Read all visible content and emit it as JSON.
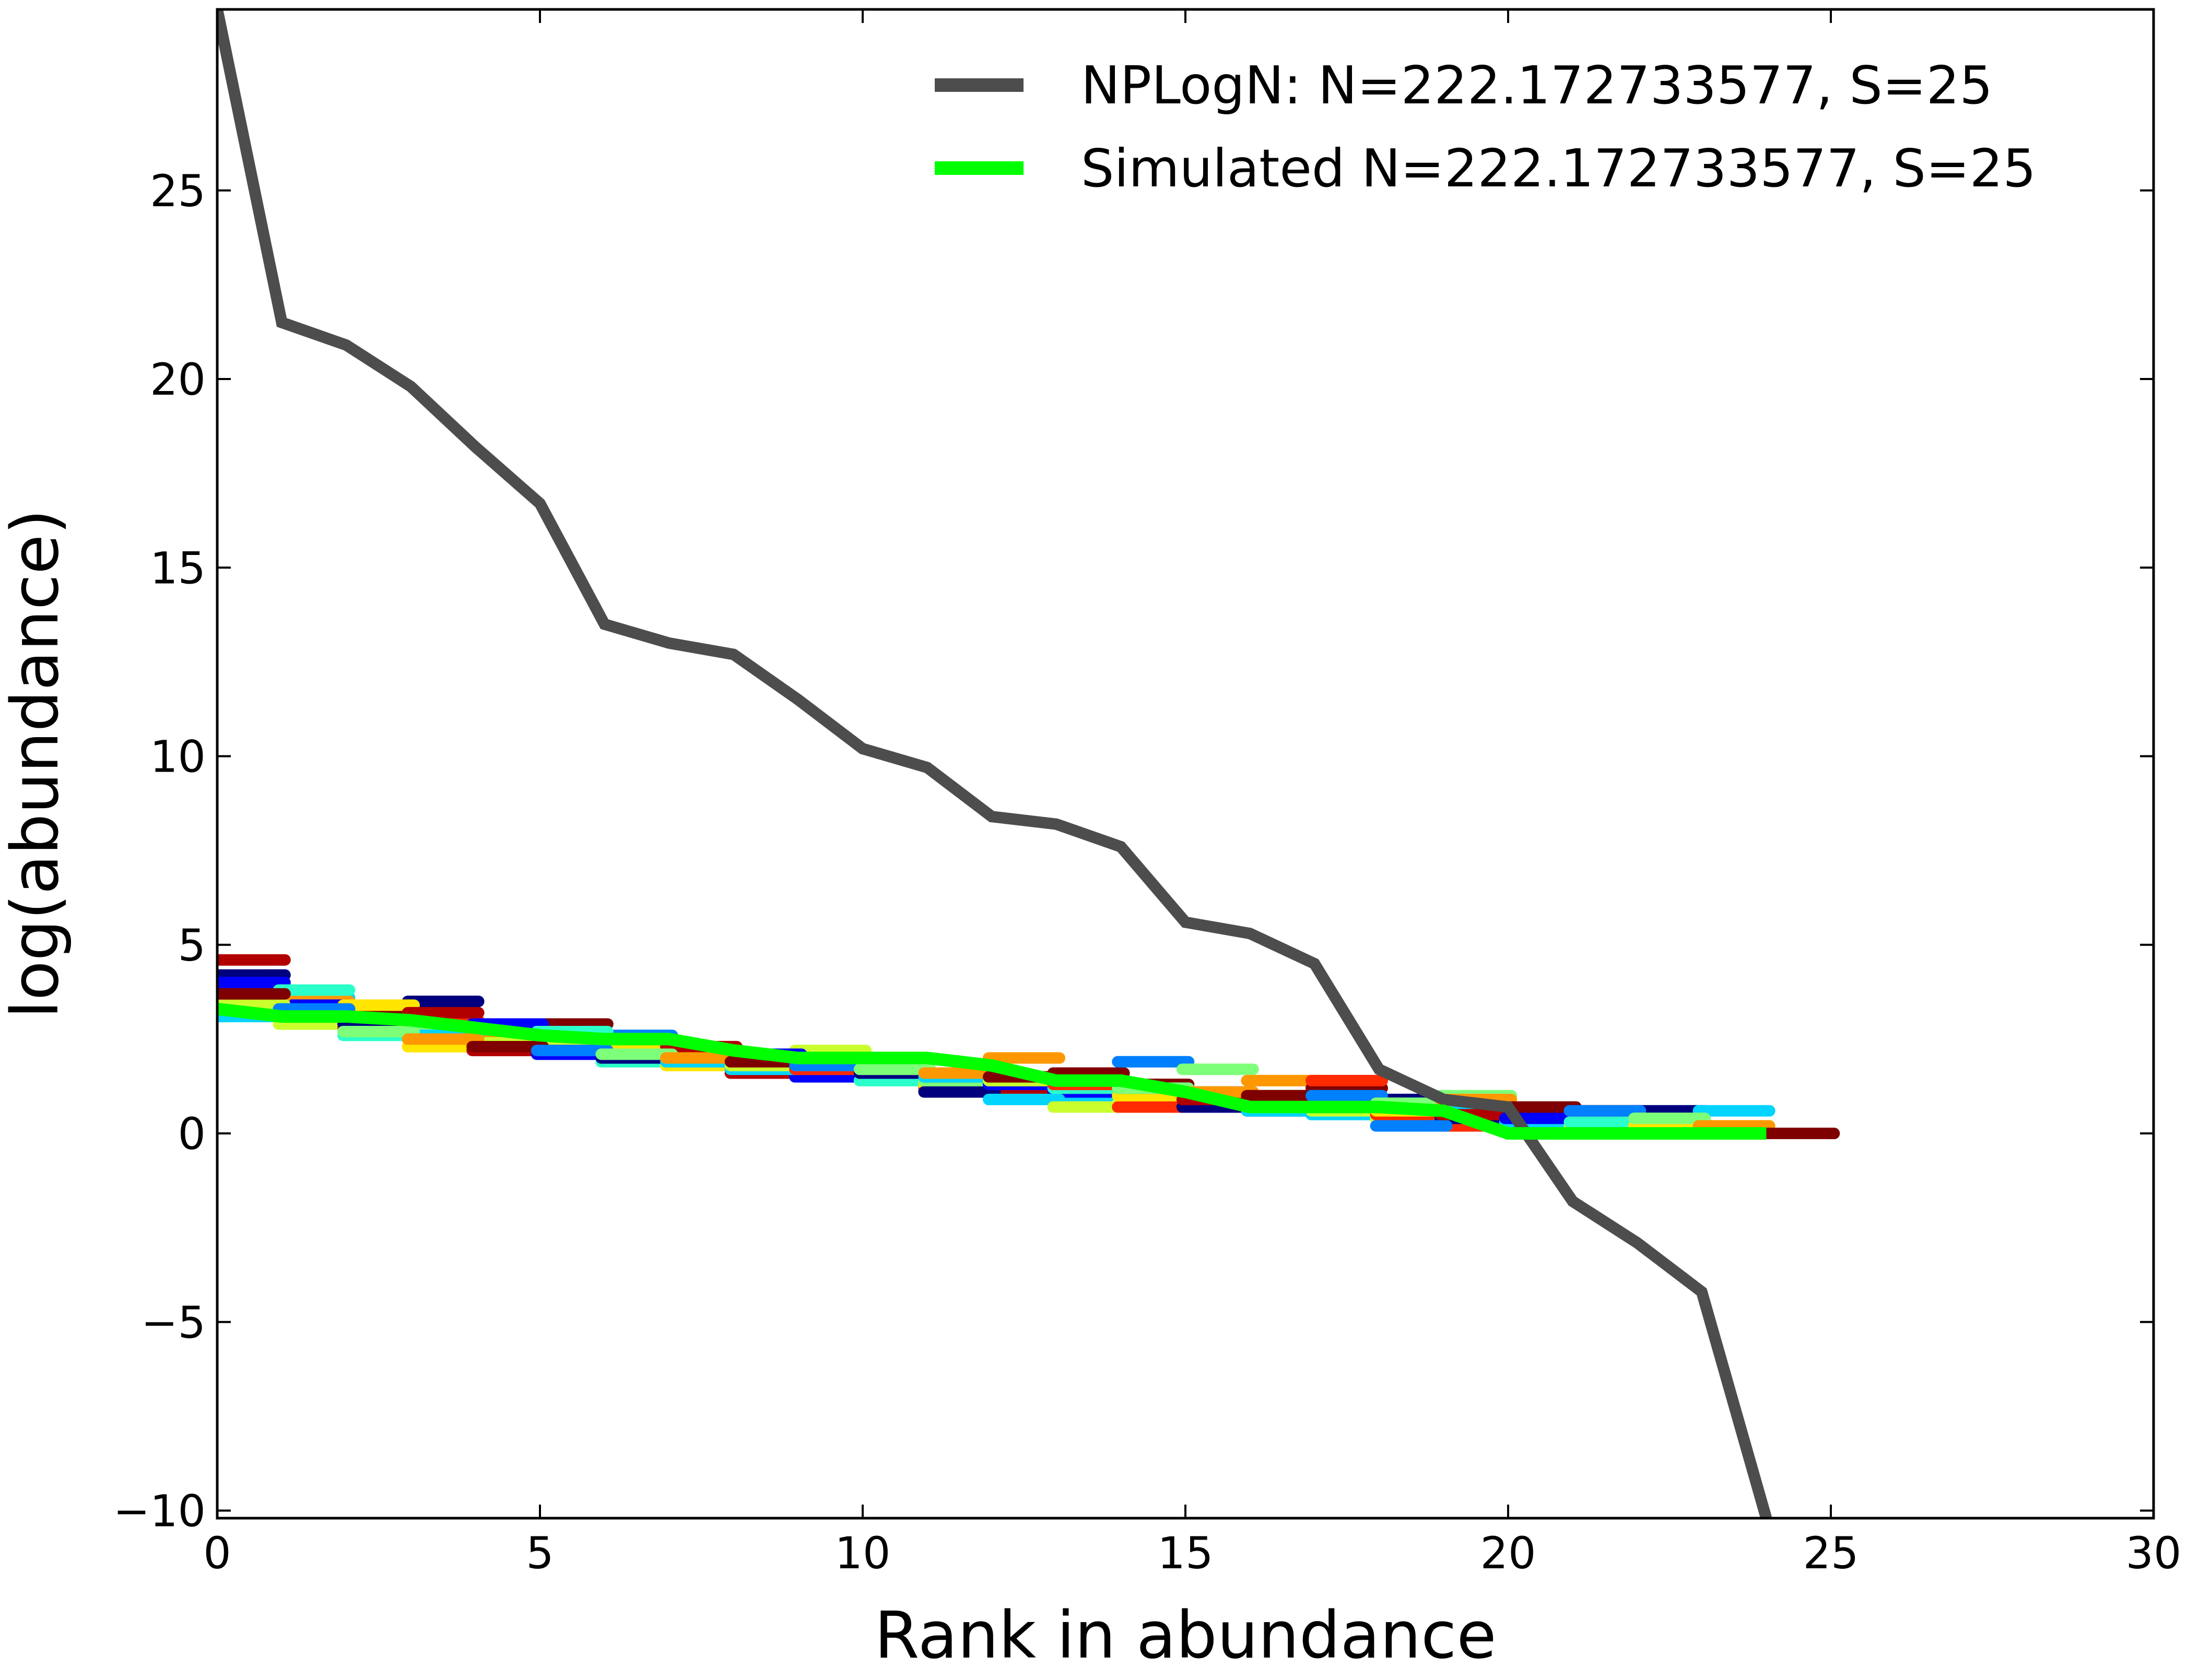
{
  "chart_data": {
    "type": "line",
    "title": "",
    "xlabel": "Rank in abundance",
    "ylabel": "log(abundance)",
    "xlim": [
      0,
      30
    ],
    "ylim": [
      -10.2,
      29.8
    ],
    "x_ticks": [
      {
        "value": 0,
        "label": "0"
      },
      {
        "value": 5,
        "label": "5"
      },
      {
        "value": 10,
        "label": "10"
      },
      {
        "value": 15,
        "label": "15"
      },
      {
        "value": 20,
        "label": "20"
      },
      {
        "value": 25,
        "label": "25"
      },
      {
        "value": 30,
        "label": "30"
      }
    ],
    "y_ticks": [
      {
        "value": -10,
        "label": "−10"
      },
      {
        "value": -5,
        "label": "−5"
      },
      {
        "value": 0,
        "label": "0"
      },
      {
        "value": 5,
        "label": "5"
      },
      {
        "value": 10,
        "label": "10"
      },
      {
        "value": 15,
        "label": "15"
      },
      {
        "value": 20,
        "label": "20"
      },
      {
        "value": 25,
        "label": "25"
      }
    ],
    "grid": false,
    "legend_position": "top-right",
    "series": [
      {
        "name": "NPLogN: N=222.172733577, S=25",
        "color": "#4d4d4d",
        "x": [
          0,
          1,
          2,
          3,
          4,
          5,
          6,
          7,
          8,
          9,
          10,
          11,
          12,
          13,
          14,
          15,
          16,
          17,
          18,
          19,
          20,
          21,
          22,
          23,
          24
        ],
        "y": [
          29.8,
          21.5,
          20.9,
          19.8,
          18.2,
          16.7,
          13.5,
          13.0,
          12.7,
          11.5,
          10.2,
          9.7,
          8.4,
          8.2,
          7.6,
          5.6,
          5.3,
          4.5,
          1.7,
          0.9,
          0.7,
          -1.8,
          -2.9,
          -4.2,
          -10.2
        ]
      },
      {
        "name": "Simulated N=222.172733577, S=25",
        "color": "#00ff00",
        "x": [
          0,
          1,
          2,
          3,
          4,
          5,
          6,
          7,
          8,
          9,
          10,
          11,
          12,
          13,
          14,
          15,
          16,
          17,
          18,
          19,
          20,
          21,
          22,
          23,
          24
        ],
        "y": [
          3.3,
          3.1,
          3.1,
          3.0,
          2.8,
          2.6,
          2.5,
          2.5,
          2.2,
          2.0,
          2.0,
          2.0,
          1.8,
          1.4,
          1.4,
          1.1,
          0.7,
          0.7,
          0.7,
          0.6,
          0.0,
          0.0,
          0.0,
          0.0,
          0.0
        ]
      }
    ],
    "simulated_draws": {
      "description": "",
      "colormap": [
        "#00007f",
        "#0000ff",
        "#0080ff",
        "#00d4ff",
        "#2bffca",
        "#7dff7a",
        "#caff2d",
        "#ffe500",
        "#ff9800",
        "#ff2a00",
        "#b20000",
        "#7f0000"
      ],
      "runs": [
        [
          4.2,
          3.6,
          3.3,
          3.0,
          2.6,
          2.4,
          2.2,
          2.0,
          1.9,
          1.7,
          1.5,
          1.2,
          1.0,
          0.9,
          0.8,
          0.7,
          0.6,
          0.5,
          0.4,
          0.2,
          0.1,
          0.0,
          0.0,
          0.0,
          0.0
        ],
        [
          3.9,
          3.5,
          3.1,
          2.8,
          2.7,
          2.5,
          2.3,
          2.1,
          2.0,
          1.8,
          1.7,
          1.6,
          1.5,
          1.4,
          1.3,
          1.1,
          1.0,
          0.9,
          0.7,
          0.6,
          0.4,
          0.3,
          0.2,
          0.1,
          0.0
        ],
        [
          4.6,
          3.4,
          2.6,
          2.3,
          2.2,
          2.1,
          1.9,
          1.8,
          1.6,
          1.5,
          1.4,
          1.3,
          1.2,
          1.1,
          1.0,
          0.9,
          0.8,
          0.7,
          0.6,
          0.5,
          0.4,
          0.3,
          0.2,
          0.1,
          0.0
        ],
        [
          3.1,
          2.9,
          2.8,
          3.5,
          2.4,
          2.3,
          2.2,
          2.1,
          1.7,
          2.2,
          1.7,
          1.1,
          0.9,
          0.7,
          0.7,
          0.7,
          0.6,
          0.6,
          0.5,
          0.4,
          0.3,
          0.2,
          0.2,
          0.1,
          0.0
        ],
        [
          3.6,
          3.2,
          3.0,
          2.7,
          2.5,
          2.9,
          2.6,
          2.3,
          2.0,
          1.8,
          1.6,
          1.4,
          2.0,
          1.6,
          1.9,
          1.7,
          1.4,
          1.2,
          0.2,
          1.0,
          0.7,
          0.6,
          0.4,
          0.2,
          0.0
        ],
        [
          4.0,
          3.8,
          3.4,
          3.2,
          2.9,
          2.7,
          2.4,
          2.3,
          2.1,
          1.9,
          1.7,
          1.5,
          1.3,
          1.2,
          1.0,
          0.9,
          0.8,
          0.7,
          0.6,
          0.5,
          0.4,
          0.3,
          0.2,
          0.1,
          0.0
        ],
        [
          3.4,
          3.1,
          2.9,
          2.6,
          2.4,
          2.2,
          2.0,
          1.9,
          1.8,
          1.7,
          1.6,
          1.5,
          1.4,
          1.3,
          1.2,
          1.1,
          1.0,
          1.4,
          0.9,
          0.8,
          0.7,
          0.6,
          0.6,
          0.6,
          0.0
        ],
        [
          3.7,
          3.3,
          2.7,
          2.5,
          2.3,
          2.2,
          2.1,
          2.0,
          1.9,
          1.8,
          1.7,
          1.6,
          1.5,
          1.4,
          1.2,
          1.1,
          1.0,
          1.0,
          0.8,
          0.9,
          0.7,
          0.6,
          0.4,
          0.2,
          0.0
        ]
      ]
    }
  }
}
